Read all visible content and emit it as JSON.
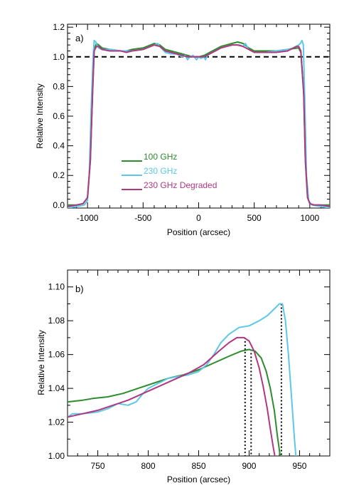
{
  "chart_data": [
    {
      "panel": "a)",
      "type": "line",
      "xlabel": "Position (arcsec)",
      "ylabel": "Relative Intensity",
      "xlim": [
        -1180,
        1180
      ],
      "ylim": [
        -0.02,
        1.22
      ],
      "xticks": [
        -1000,
        -500,
        0,
        500,
        1000
      ],
      "xtick_labels": [
        "-1000",
        "-500",
        "0",
        "500",
        "1000"
      ],
      "yticks": [
        0.0,
        0.2,
        0.4,
        0.6,
        0.8,
        1.0,
        1.2
      ],
      "ytick_labels": [
        "0.0",
        "0.2",
        "0.4",
        "0.6",
        "0.8",
        "1.0",
        "1.2"
      ],
      "reference_line": {
        "y": 1.0,
        "style": "dashed",
        "color": "#000000"
      },
      "legend_position": "lower-left",
      "series": [
        {
          "name": "100 GHz",
          "color": "#2e8b2e",
          "x": [
            -1180,
            -1100,
            -1040,
            -1000,
            -975,
            -955,
            -940,
            -920,
            -900,
            -870,
            -800,
            -700,
            -650,
            -600,
            -500,
            -400,
            -350,
            -300,
            -250,
            -200,
            -150,
            -100,
            -50,
            0,
            50,
            100,
            150,
            200,
            300,
            350,
            400,
            450,
            500,
            550,
            600,
            700,
            800,
            900,
            920,
            945,
            960,
            980,
            1000,
            1040,
            1100,
            1180
          ],
          "y": [
            0.0,
            0.0,
            0.01,
            0.05,
            0.3,
            0.75,
            1.05,
            1.09,
            1.08,
            1.06,
            1.05,
            1.04,
            1.04,
            1.05,
            1.06,
            1.09,
            1.08,
            1.05,
            1.04,
            1.03,
            1.02,
            1.01,
            1.0,
            1.0,
            1.01,
            1.03,
            1.05,
            1.07,
            1.09,
            1.1,
            1.09,
            1.06,
            1.04,
            1.04,
            1.04,
            1.04,
            1.05,
            1.06,
            1.03,
            0.75,
            0.3,
            0.05,
            0.01,
            0.0,
            0.0,
            0.0
          ]
        },
        {
          "name": "230 GHz",
          "color": "#5bc8e8",
          "x": [
            -1180,
            -1100,
            -1030,
            -1000,
            -985,
            -965,
            -950,
            -940,
            -925,
            -910,
            -900,
            -870,
            -800,
            -700,
            -600,
            -500,
            -400,
            -370,
            -350,
            -300,
            -250,
            -200,
            -150,
            -120,
            -100,
            -80,
            -50,
            -20,
            0,
            20,
            50,
            60,
            80,
            100,
            150,
            200,
            250,
            300,
            370,
            400,
            420,
            450,
            500,
            600,
            700,
            800,
            850,
            900,
            915,
            930,
            942,
            955,
            970,
            990,
            1020,
            1100,
            1180
          ],
          "y": [
            -0.02,
            -0.01,
            0.0,
            0.03,
            0.2,
            0.7,
            1.0,
            1.11,
            1.1,
            1.07,
            1.06,
            1.05,
            1.05,
            1.04,
            1.04,
            1.05,
            1.08,
            1.09,
            1.07,
            1.03,
            1.02,
            1.02,
            1.0,
            1.01,
            0.98,
            1.0,
            1.01,
            0.98,
            1.0,
            0.99,
            1.0,
            0.98,
            1.01,
            1.02,
            1.04,
            1.06,
            1.07,
            1.08,
            1.08,
            1.07,
            1.09,
            1.05,
            1.03,
            1.03,
            1.04,
            1.05,
            1.06,
            1.08,
            1.09,
            1.11,
            1.08,
            0.7,
            0.2,
            0.03,
            0.0,
            -0.01,
            -0.02
          ]
        },
        {
          "name": "230 GHz Degraded",
          "color": "#b03880",
          "x": [
            -1180,
            -1100,
            -1040,
            -1000,
            -975,
            -955,
            -940,
            -920,
            -900,
            -870,
            -800,
            -700,
            -650,
            -600,
            -500,
            -400,
            -350,
            -300,
            -250,
            -200,
            -150,
            -100,
            -50,
            0,
            50,
            100,
            150,
            200,
            300,
            350,
            400,
            450,
            500,
            550,
            600,
            700,
            800,
            880,
            900,
            920,
            945,
            960,
            980,
            1000,
            1040,
            1100,
            1180
          ],
          "y": [
            -0.01,
            0.0,
            0.01,
            0.05,
            0.3,
            0.75,
            1.04,
            1.07,
            1.07,
            1.05,
            1.04,
            1.04,
            1.03,
            1.04,
            1.05,
            1.08,
            1.07,
            1.04,
            1.03,
            1.02,
            1.01,
            1.0,
            1.0,
            1.0,
            1.0,
            1.02,
            1.04,
            1.06,
            1.08,
            1.08,
            1.07,
            1.05,
            1.03,
            1.03,
            1.03,
            1.03,
            1.04,
            1.07,
            1.07,
            1.04,
            0.75,
            0.3,
            0.05,
            0.01,
            0.0,
            0.0,
            -0.01
          ]
        }
      ]
    },
    {
      "panel": "b)",
      "type": "line",
      "xlabel": "Position (arcsec)",
      "ylabel": "Relative Intensity",
      "xlim": [
        720,
        980
      ],
      "ylim": [
        1.0,
        1.11
      ],
      "xticks": [
        750,
        800,
        850,
        900,
        950
      ],
      "xtick_labels": [
        "750",
        "800",
        "850",
        "900",
        "950"
      ],
      "yticks": [
        1.0,
        1.02,
        1.04,
        1.06,
        1.08,
        1.1
      ],
      "ytick_labels": [
        "1.00",
        "1.02",
        "1.04",
        "1.06",
        "1.08",
        "1.10"
      ],
      "markers": [
        {
          "x": 896,
          "y_top": 1.07,
          "style": "dotted",
          "color": "#000000"
        },
        {
          "x": 902,
          "y_top": 1.063,
          "style": "dotted",
          "color": "#000000"
        },
        {
          "x": 932,
          "y_top": 1.09,
          "style": "dotted",
          "color": "#000000"
        }
      ],
      "series": [
        {
          "name": "100 GHz",
          "color": "#2e8b2e",
          "x": [
            720,
            735,
            745,
            760,
            775,
            790,
            805,
            820,
            835,
            850,
            865,
            880,
            892,
            900,
            906,
            912,
            917,
            921,
            925,
            928,
            932
          ],
          "y": [
            1.032,
            1.033,
            1.034,
            1.035,
            1.037,
            1.04,
            1.043,
            1.046,
            1.048,
            1.051,
            1.055,
            1.059,
            1.062,
            1.063,
            1.062,
            1.058,
            1.05,
            1.04,
            1.027,
            1.012,
            0.995
          ]
        },
        {
          "name": "230 GHz",
          "color": "#5bc8e8",
          "x": [
            720,
            725,
            735,
            750,
            760,
            770,
            780,
            788,
            795,
            800,
            810,
            820,
            830,
            840,
            850,
            858,
            865,
            872,
            880,
            890,
            900,
            910,
            918,
            925,
            930,
            933,
            936,
            939,
            942,
            945,
            947
          ],
          "y": [
            1.023,
            1.025,
            1.025,
            1.026,
            1.028,
            1.031,
            1.03,
            1.032,
            1.037,
            1.04,
            1.043,
            1.046,
            1.047,
            1.048,
            1.05,
            1.054,
            1.06,
            1.067,
            1.072,
            1.076,
            1.077,
            1.08,
            1.083,
            1.087,
            1.09,
            1.09,
            1.08,
            1.06,
            1.035,
            1.01,
            0.995
          ]
        },
        {
          "name": "230 GHz Degraded",
          "color": "#b03880",
          "x": [
            720,
            735,
            750,
            765,
            780,
            795,
            810,
            825,
            840,
            855,
            870,
            880,
            888,
            895,
            900,
            905,
            910,
            914,
            918,
            921,
            924,
            927
          ],
          "y": [
            1.023,
            1.025,
            1.027,
            1.03,
            1.033,
            1.037,
            1.041,
            1.045,
            1.049,
            1.054,
            1.062,
            1.067,
            1.07,
            1.07,
            1.068,
            1.062,
            1.052,
            1.041,
            1.028,
            1.016,
            1.005,
            0.995
          ]
        }
      ]
    }
  ]
}
